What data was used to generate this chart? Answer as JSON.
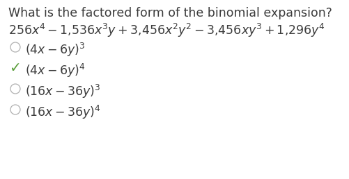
{
  "background_color": "#ffffff",
  "question_line1": "What is the factored form of the binomial expansion?",
  "text_color": "#3c3c3c",
  "correct_color": "#5a9e3a",
  "circle_color": "#b0b0b0",
  "font_size_question": 12.5,
  "font_size_options": 12.5,
  "options": [
    {
      "correct": false
    },
    {
      "correct": true
    },
    {
      "correct": false
    },
    {
      "correct": false
    }
  ]
}
